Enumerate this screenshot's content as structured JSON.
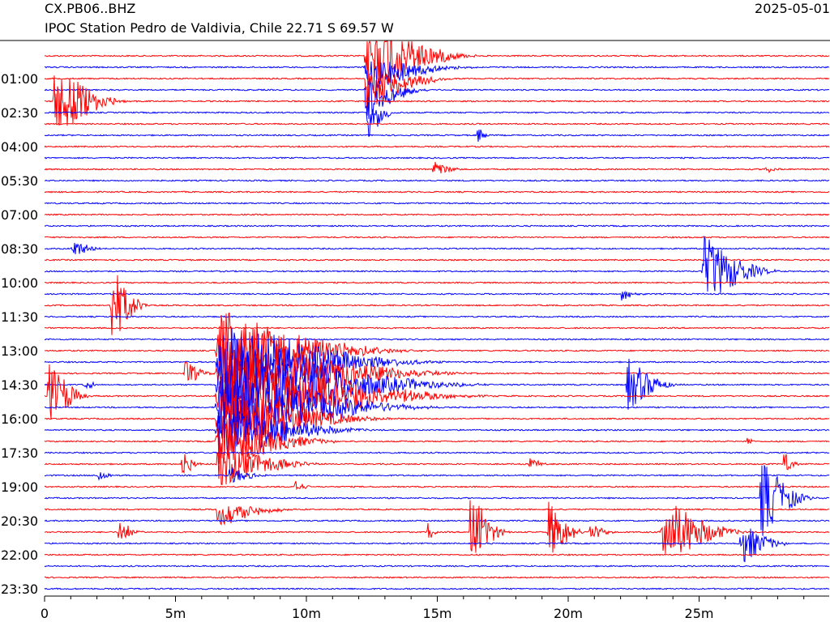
{
  "header": {
    "station_code": "CX.PB06..BHZ",
    "station_desc": "IPOC Station Pedro de Valdivia, Chile  22.71 S 69.57 W",
    "date": "2025-05-01"
  },
  "chart_data": {
    "type": "seismogram-helicorder",
    "line_minutes": 30,
    "rows": 48,
    "colors": [
      "#ff0000",
      "#0000ff"
    ],
    "y_tick_labels": [
      "01:00",
      "02:30",
      "04:00",
      "05:30",
      "07:00",
      "08:30",
      "10:00",
      "11:30",
      "13:00",
      "14:30",
      "16:00",
      "17:30",
      "19:00",
      "20:30",
      "22:00",
      "23:30"
    ],
    "y_tick_rows": [
      2,
      5,
      8,
      11,
      14,
      17,
      20,
      23,
      26,
      29,
      32,
      35,
      38,
      41,
      44,
      47
    ],
    "x_ticks": [
      {
        "minute": 0,
        "label": "0"
      },
      {
        "minute": 5,
        "label": "5m"
      },
      {
        "minute": 10,
        "label": "10m"
      },
      {
        "minute": 15,
        "label": "15m"
      },
      {
        "minute": 20,
        "label": "20m"
      },
      {
        "minute": 25,
        "label": "25m"
      }
    ],
    "xlim": [
      0,
      30
    ],
    "events": [
      {
        "row": 0,
        "start": 12.2,
        "amp": 1.0,
        "dur": 5,
        "dir": "both"
      },
      {
        "row": 1,
        "start": 12.2,
        "amp": 0.6,
        "dur": 5,
        "dir": "down"
      },
      {
        "row": 2,
        "start": 12.2,
        "amp": 0.8,
        "dur": 4,
        "dir": "down"
      },
      {
        "row": 3,
        "start": 12.2,
        "amp": 0.7,
        "dur": 3,
        "dir": "down"
      },
      {
        "row": 4,
        "start": 0.3,
        "amp": 0.85,
        "dur": 3.5,
        "dir": "both"
      },
      {
        "row": 5,
        "start": 12.3,
        "amp": 0.6,
        "dur": 1.5,
        "dir": "down"
      },
      {
        "row": 7,
        "start": 16.5,
        "amp": 0.2,
        "dur": 0.8,
        "dir": "both"
      },
      {
        "row": 10,
        "start": 14.8,
        "amp": 0.2,
        "dur": 1.5,
        "dir": "both"
      },
      {
        "row": 10,
        "start": 27.5,
        "amp": 0.1,
        "dur": 0.8,
        "dir": "both"
      },
      {
        "row": 17,
        "start": 1.0,
        "amp": 0.25,
        "dur": 1.5,
        "dir": "both"
      },
      {
        "row": 19,
        "start": 25.1,
        "amp": 0.8,
        "dur": 3.5,
        "dir": "both"
      },
      {
        "row": 21,
        "start": 22.0,
        "amp": 0.15,
        "dur": 1.3,
        "dir": "both"
      },
      {
        "row": 22,
        "start": 2.5,
        "amp": 0.9,
        "dur": 1.8,
        "dir": "both"
      },
      {
        "row": 26,
        "start": 6.5,
        "amp": 0.9,
        "dur": 9,
        "dir": "both"
      },
      {
        "row": 27,
        "start": 6.5,
        "amp": 1.0,
        "dur": 10,
        "dir": "both"
      },
      {
        "row": 28,
        "start": 6.5,
        "amp": 1.0,
        "dur": 11,
        "dir": "both"
      },
      {
        "row": 28,
        "start": 5.3,
        "amp": 0.3,
        "dur": 1.5,
        "dir": "both"
      },
      {
        "row": 29,
        "start": 6.5,
        "amp": 1.0,
        "dur": 12,
        "dir": "both"
      },
      {
        "row": 29,
        "start": 22.2,
        "amp": 0.6,
        "dur": 2.5,
        "dir": "both"
      },
      {
        "row": 29,
        "start": 1.5,
        "amp": 0.15,
        "dur": 0.8,
        "dir": "both"
      },
      {
        "row": 30,
        "start": 0.1,
        "amp": 0.8,
        "dur": 2,
        "dir": "both"
      },
      {
        "row": 30,
        "start": 6.5,
        "amp": 1.0,
        "dur": 12,
        "dir": "both"
      },
      {
        "row": 31,
        "start": 6.5,
        "amp": 0.9,
        "dur": 10,
        "dir": "both"
      },
      {
        "row": 32,
        "start": 6.5,
        "amp": 0.8,
        "dur": 8,
        "dir": "both"
      },
      {
        "row": 33,
        "start": 6.5,
        "amp": 0.7,
        "dur": 7,
        "dir": "both"
      },
      {
        "row": 34,
        "start": 6.5,
        "amp": 0.6,
        "dur": 6,
        "dir": "both"
      },
      {
        "row": 34,
        "start": 26.8,
        "amp": 0.1,
        "dur": 0.6,
        "dir": "both"
      },
      {
        "row": 36,
        "start": 6.5,
        "amp": 0.5,
        "dur": 5,
        "dir": "both"
      },
      {
        "row": 36,
        "start": 5.2,
        "amp": 0.35,
        "dur": 1,
        "dir": "both"
      },
      {
        "row": 36,
        "start": 28.2,
        "amp": 0.3,
        "dur": 0.8,
        "dir": "both"
      },
      {
        "row": 36,
        "start": 18.5,
        "amp": 0.15,
        "dur": 1,
        "dir": "both"
      },
      {
        "row": 37,
        "start": 7.0,
        "amp": 0.2,
        "dur": 2,
        "dir": "both"
      },
      {
        "row": 37,
        "start": 2.0,
        "amp": 0.15,
        "dur": 1,
        "dir": "both"
      },
      {
        "row": 38,
        "start": 9.5,
        "amp": 0.15,
        "dur": 1,
        "dir": "both"
      },
      {
        "row": 39,
        "start": 27.3,
        "amp": 0.9,
        "dur": 2.5,
        "dir": "both"
      },
      {
        "row": 40,
        "start": 6.5,
        "amp": 0.4,
        "dur": 4,
        "dir": "down"
      },
      {
        "row": 42,
        "start": 2.8,
        "amp": 0.3,
        "dur": 1.2,
        "dir": "both"
      },
      {
        "row": 42,
        "start": 14.6,
        "amp": 0.25,
        "dur": 0.6,
        "dir": "both"
      },
      {
        "row": 42,
        "start": 16.2,
        "amp": 1.0,
        "dur": 1.8,
        "dir": "both"
      },
      {
        "row": 42,
        "start": 19.2,
        "amp": 0.7,
        "dur": 1.8,
        "dir": "both"
      },
      {
        "row": 42,
        "start": 20.8,
        "amp": 0.25,
        "dur": 1.2,
        "dir": "both"
      },
      {
        "row": 42,
        "start": 23.5,
        "amp": 0.8,
        "dur": 4,
        "dir": "both"
      },
      {
        "row": 43,
        "start": 26.5,
        "amp": 0.5,
        "dur": 2.5,
        "dir": "both"
      }
    ]
  }
}
